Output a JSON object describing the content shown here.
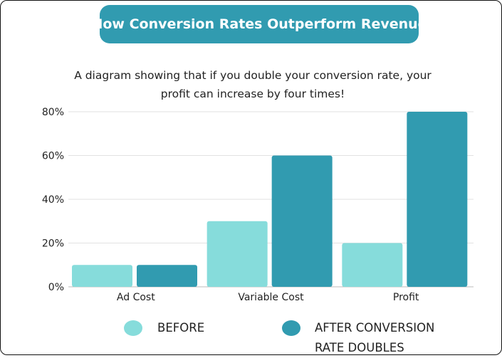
{
  "chart_data": {
    "type": "bar",
    "title": "How Conversion Rates Outperform Revenue",
    "subtitle": "A diagram showing that if you double your conversion rate, your profit can increase by four times!",
    "categories": [
      "Ad Cost",
      "Variable Cost",
      "Profit"
    ],
    "series": [
      {
        "name": "BEFORE",
        "values": [
          10,
          30,
          20
        ],
        "color": "#86DCDB"
      },
      {
        "name": "AFTER CONVERSION RATE DOUBLES",
        "values": [
          10,
          60,
          80
        ],
        "color": "#319BB0"
      }
    ],
    "yticks": [
      "0%",
      "20%",
      "40%",
      "60%",
      "80%"
    ],
    "ylim": [
      0,
      80
    ],
    "grid": true,
    "legend": "bottom"
  }
}
